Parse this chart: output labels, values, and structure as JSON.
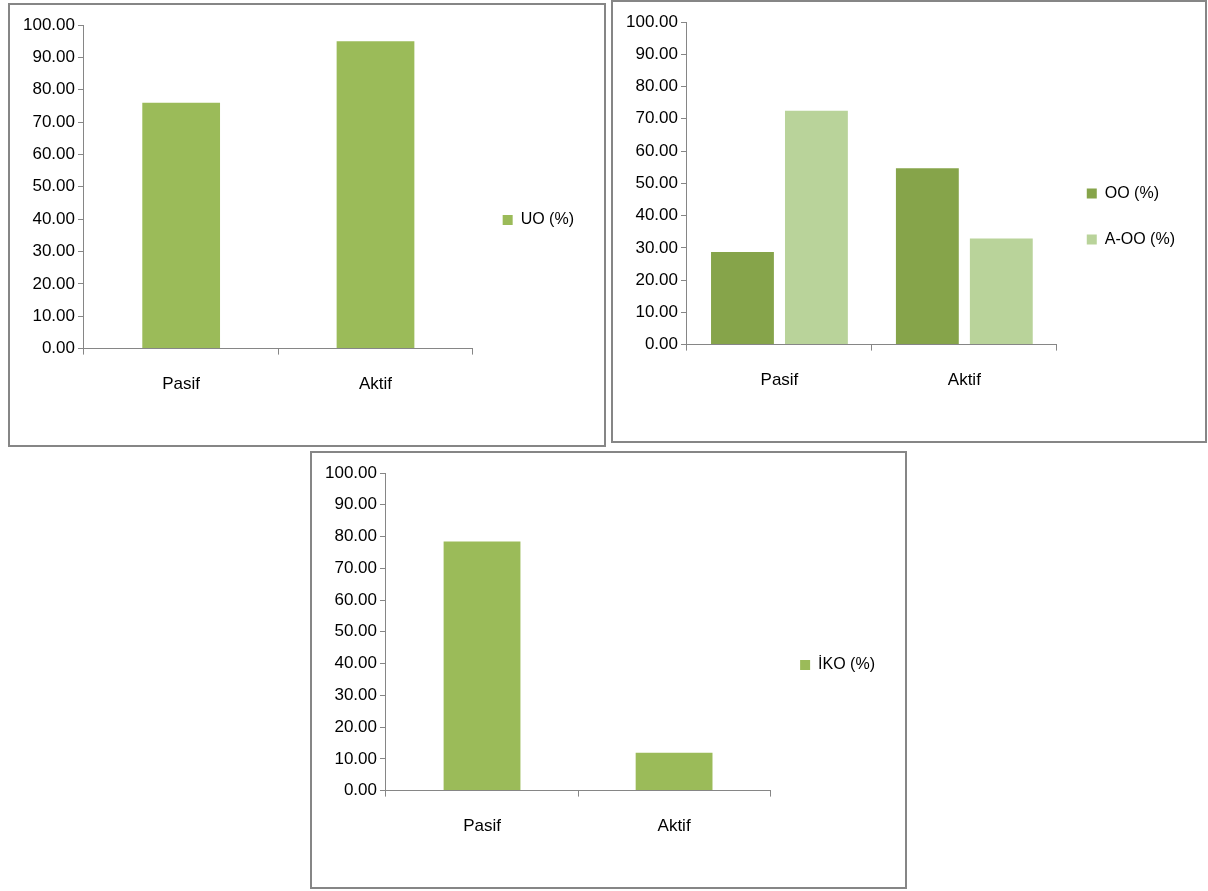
{
  "chart_data": [
    {
      "type": "bar",
      "categories": [
        "Pasif",
        "Aktif"
      ],
      "series": [
        {
          "name": "UO (%)",
          "color": "#9bbb59",
          "values": [
            76,
            95
          ]
        }
      ],
      "ylim": [
        0,
        100
      ],
      "yticks": [
        {
          "value": 0,
          "label": "0.00"
        },
        {
          "value": 10,
          "label": "10.00"
        },
        {
          "value": 20,
          "label": "20.00"
        },
        {
          "value": 30,
          "label": "30.00"
        },
        {
          "value": 40,
          "label": "40.00"
        },
        {
          "value": 50,
          "label": "50.00"
        },
        {
          "value": 60,
          "label": "60.00"
        },
        {
          "value": 70,
          "label": "70.00"
        },
        {
          "value": 80,
          "label": "80.00"
        },
        {
          "value": 90,
          "label": "90.00"
        },
        {
          "value": 100,
          "label": "100.00"
        }
      ],
      "grid": false,
      "legend": "right"
    },
    {
      "type": "bar",
      "categories": [
        "Pasif",
        "Aktif"
      ],
      "series": [
        {
          "name": "OO (%)",
          "color": "#86a44a",
          "values": [
            28.7,
            54.7
          ]
        },
        {
          "name": "A-OO (%)",
          "color": "#b9d39a",
          "values": [
            72.5,
            32.9
          ]
        }
      ],
      "ylim": [
        0,
        100
      ],
      "yticks": [
        {
          "value": 0,
          "label": "0.00"
        },
        {
          "value": 10,
          "label": "10.00"
        },
        {
          "value": 20,
          "label": "20.00"
        },
        {
          "value": 30,
          "label": "30.00"
        },
        {
          "value": 40,
          "label": "40.00"
        },
        {
          "value": 50,
          "label": "50.00"
        },
        {
          "value": 60,
          "label": "60.00"
        },
        {
          "value": 70,
          "label": "70.00"
        },
        {
          "value": 80,
          "label": "80.00"
        },
        {
          "value": 90,
          "label": "90.00"
        },
        {
          "value": 100,
          "label": "100.00"
        }
      ],
      "grid": false,
      "legend": "right"
    },
    {
      "type": "bar",
      "categories": [
        "Pasif",
        "Aktif"
      ],
      "series": [
        {
          "name": "İKO (%)",
          "color": "#9bbb59",
          "values": [
            78.4,
            11.9
          ]
        }
      ],
      "ylim": [
        0,
        100
      ],
      "yticks": [
        {
          "value": 0,
          "label": "0.00"
        },
        {
          "value": 10,
          "label": "10.00"
        },
        {
          "value": 20,
          "label": "20.00"
        },
        {
          "value": 30,
          "label": "30.00"
        },
        {
          "value": 40,
          "label": "40.00"
        },
        {
          "value": 50,
          "label": "50.00"
        },
        {
          "value": 60,
          "label": "60.00"
        },
        {
          "value": 70,
          "label": "70.00"
        },
        {
          "value": 80,
          "label": "80.00"
        },
        {
          "value": 90,
          "label": "90.00"
        },
        {
          "value": 100,
          "label": "100.00"
        }
      ],
      "grid": false,
      "legend": "right"
    }
  ]
}
